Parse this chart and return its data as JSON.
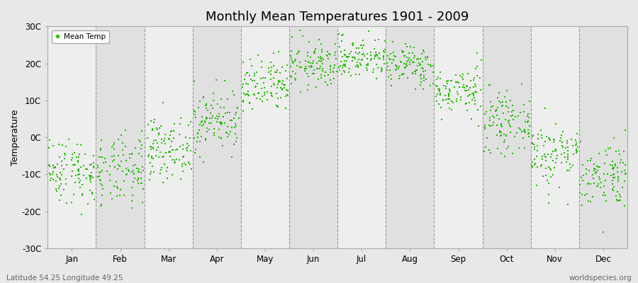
{
  "title": "Monthly Mean Temperatures 1901 - 2009",
  "ylabel": "Temperature",
  "xlabel_bottom_left": "Latitude 54.25 Longitude 49.25",
  "xlabel_bottom_right": "worldspecies.org",
  "months": [
    "Jan",
    "Feb",
    "Mar",
    "Apr",
    "May",
    "Jun",
    "Jul",
    "Aug",
    "Sep",
    "Oct",
    "Nov",
    "Dec"
  ],
  "ylim": [
    -30,
    30
  ],
  "yticks": [
    -30,
    -20,
    -10,
    0,
    10,
    20,
    30
  ],
  "ytick_labels": [
    "-30C",
    "-20C",
    "-10C",
    "0C",
    "10C",
    "20C",
    "30C"
  ],
  "dot_color": "#22bb00",
  "dot_size": 3.5,
  "background_color": "#e8e8e8",
  "plot_bg_light": "#eeeeee",
  "plot_bg_dark": "#e0e0e0",
  "legend_label": "Mean Temp",
  "title_fontsize": 13,
  "axis_fontsize": 8.5,
  "monthly_means": [
    -9.0,
    -9.5,
    -3.0,
    4.5,
    13.5,
    19.5,
    21.5,
    19.5,
    12.5,
    4.0,
    -4.5,
    -10.0
  ],
  "monthly_std": [
    4.5,
    4.8,
    4.0,
    4.2,
    3.8,
    3.2,
    2.8,
    2.8,
    3.2,
    3.8,
    4.5,
    4.5
  ],
  "n_years": 109,
  "seed": 42
}
